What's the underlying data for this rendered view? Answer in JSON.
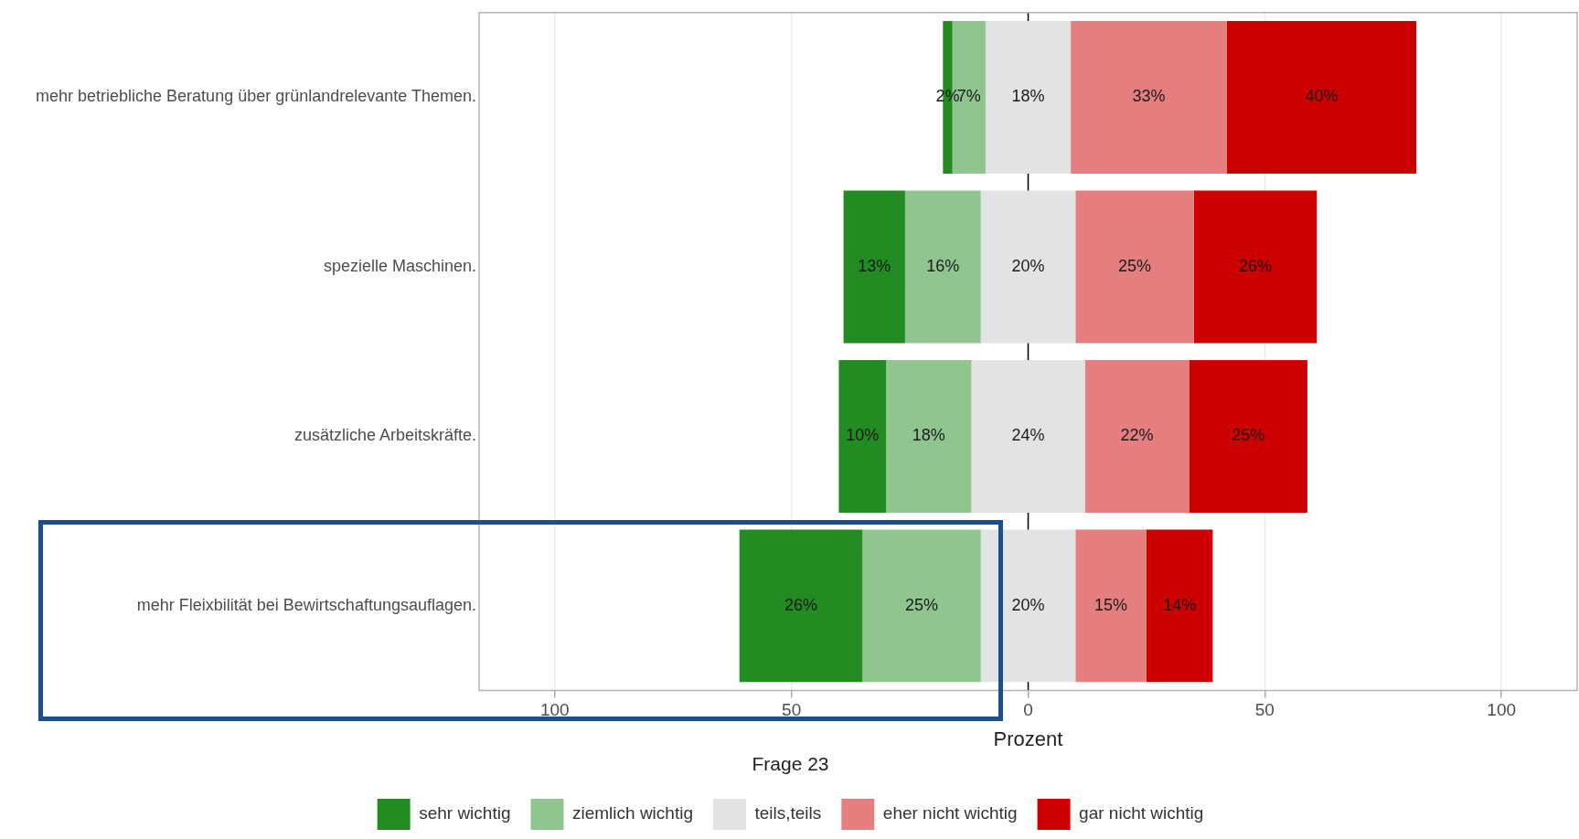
{
  "chart_data": {
    "type": "bar",
    "orientation": "horizontal",
    "xlabel": "Prozent",
    "legend_title": "Frage 23",
    "categories": [
      "mehr betriebliche Beratung über grünlandrelevante Themen.",
      "spezielle Maschinen.",
      "zusätzliche Arbeitskräfte.",
      "mehr Fleixbilität bei Bewirtschaftungsauflagen."
    ],
    "series": [
      {
        "name": "sehr wichtig",
        "color": "#228b22",
        "values": [
          2,
          13,
          10,
          26
        ],
        "base": [
          -18,
          -39,
          -40,
          -61
        ],
        "value_labels": [
          "2%",
          "13%",
          "10%",
          "26%"
        ]
      },
      {
        "name": "ziemlich wichtig",
        "color": "#90c590",
        "values": [
          7,
          16,
          18,
          25
        ],
        "base": [
          -16,
          -26,
          -30,
          -35
        ],
        "value_labels": [
          "7%",
          "16%",
          "18%",
          "25%"
        ]
      },
      {
        "name": "teils,teils",
        "color": "#e3e3e3",
        "values": [
          18,
          20,
          24,
          20
        ],
        "base": [
          -9,
          -10,
          -12,
          -10
        ],
        "value_labels": [
          "18%",
          "20%",
          "24%",
          "20%"
        ]
      },
      {
        "name": "eher nicht wichtig",
        "color": "#e57f7f",
        "values": [
          33,
          25,
          22,
          15
        ],
        "base": [
          9,
          10,
          12,
          10
        ],
        "value_labels": [
          "33%",
          "25%",
          "22%",
          "15%"
        ]
      },
      {
        "name": "gar nicht wichtig",
        "color": "#cc0000",
        "values": [
          40,
          26,
          25,
          14
        ],
        "base": [
          42,
          35,
          34,
          25
        ],
        "value_labels": [
          "40%",
          "26%",
          "25%",
          "14%"
        ]
      }
    ],
    "xlim": [
      -116,
      116
    ],
    "xticks": [
      {
        "value": -100,
        "label": "100"
      },
      {
        "value": -50,
        "label": "50"
      },
      0,
      50,
      100
    ],
    "ref_lines": [
      {
        "axis": "x",
        "value": 0,
        "color": "#000000"
      }
    ],
    "grid": "x",
    "legend": "bottom"
  }
}
